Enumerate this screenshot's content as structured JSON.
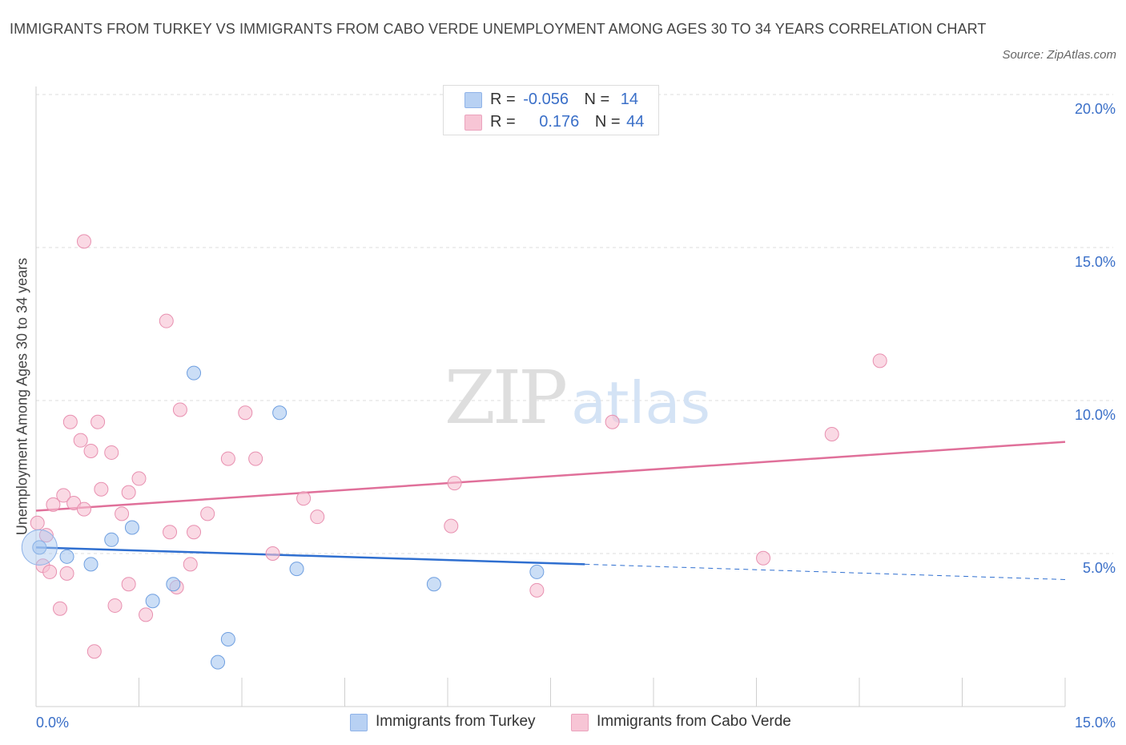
{
  "title": "IMMIGRANTS FROM TURKEY VS IMMIGRANTS FROM CABO VERDE UNEMPLOYMENT AMONG AGES 30 TO 34 YEARS CORRELATION CHART",
  "source": "Source: ZipAtlas.com",
  "watermark": {
    "zip": "ZIP",
    "atlas": "atlas"
  },
  "legend_top": {
    "rows": [
      {
        "r_label": "R =",
        "r_value": "-0.056",
        "n_label": "N =",
        "n_value": "14",
        "color": "#b8d1f3"
      },
      {
        "r_label": "R =",
        "r_value": "0.176",
        "n_label": "N =",
        "n_value": "44",
        "color": "#f7c5d5"
      }
    ]
  },
  "chart_data": {
    "type": "scatter",
    "ylabel": "Unemployment Among Ages 30 to 34 years",
    "xlim": [
      0,
      15
    ],
    "ylim": [
      0,
      20
    ],
    "x_tick_labels": [
      "0.0%",
      "15.0%"
    ],
    "y_tick_labels": [
      "5.0%",
      "10.0%",
      "15.0%",
      "20.0%"
    ],
    "y_ticks": [
      5,
      10,
      15,
      20
    ],
    "grid": "horizontal dashed",
    "legend_position": "top-center and bottom",
    "series": [
      {
        "name": "Immigrants from Turkey",
        "color": "#a9c8f0",
        "stroke": "#6f9fe0",
        "line_color": "#2f6fd0",
        "points": [
          [
            0.05,
            5.2
          ],
          [
            0.45,
            4.9
          ],
          [
            0.8,
            4.65
          ],
          [
            1.1,
            5.45
          ],
          [
            1.4,
            5.85
          ],
          [
            1.7,
            3.45
          ],
          [
            2.0,
            4.0
          ],
          [
            2.3,
            10.9
          ],
          [
            2.8,
            2.2
          ],
          [
            2.65,
            1.45
          ],
          [
            3.55,
            9.6
          ],
          [
            3.8,
            4.5
          ],
          [
            5.8,
            4.0
          ],
          [
            7.3,
            4.4
          ]
        ],
        "trend_solid": [
          [
            0.0,
            5.2
          ],
          [
            8.0,
            4.65
          ]
        ],
        "trend_dashed": [
          [
            8.0,
            4.65
          ],
          [
            15.0,
            4.15
          ]
        ]
      },
      {
        "name": "Immigrants from Cabo Verde",
        "color": "#f7c0d2",
        "stroke": "#e890b0",
        "line_color": "#e0709a",
        "points": [
          [
            0.02,
            6.0
          ],
          [
            0.1,
            4.6
          ],
          [
            0.15,
            5.6
          ],
          [
            0.2,
            4.4
          ],
          [
            0.25,
            6.6
          ],
          [
            0.35,
            3.2
          ],
          [
            0.4,
            6.9
          ],
          [
            0.45,
            4.35
          ],
          [
            0.5,
            9.3
          ],
          [
            0.55,
            6.65
          ],
          [
            0.65,
            8.7
          ],
          [
            0.7,
            15.2
          ],
          [
            0.7,
            6.45
          ],
          [
            0.8,
            8.35
          ],
          [
            0.85,
            1.8
          ],
          [
            0.9,
            9.3
          ],
          [
            0.95,
            7.1
          ],
          [
            1.1,
            8.3
          ],
          [
            1.15,
            3.3
          ],
          [
            1.25,
            6.3
          ],
          [
            1.35,
            4.0
          ],
          [
            1.35,
            7.0
          ],
          [
            1.5,
            7.45
          ],
          [
            1.6,
            3.0
          ],
          [
            1.9,
            12.6
          ],
          [
            1.95,
            5.7
          ],
          [
            2.05,
            3.9
          ],
          [
            2.1,
            9.7
          ],
          [
            2.25,
            4.65
          ],
          [
            2.3,
            5.7
          ],
          [
            2.5,
            6.3
          ],
          [
            2.8,
            8.1
          ],
          [
            3.05,
            9.6
          ],
          [
            3.2,
            8.1
          ],
          [
            3.45,
            5.0
          ],
          [
            3.9,
            6.8
          ],
          [
            4.1,
            6.2
          ],
          [
            6.1,
            7.3
          ],
          [
            6.05,
            5.9
          ],
          [
            7.3,
            3.8
          ],
          [
            8.4,
            9.3
          ],
          [
            10.6,
            4.85
          ],
          [
            11.6,
            8.9
          ],
          [
            12.3,
            11.3
          ]
        ],
        "trend_solid": [
          [
            0.0,
            6.4
          ],
          [
            15.0,
            8.65
          ]
        ]
      }
    ]
  },
  "bottom_legend": [
    {
      "label": "Immigrants from Turkey",
      "color": "#b8d1f3"
    },
    {
      "label": "Immigrants from Cabo Verde",
      "color": "#f7c5d5"
    }
  ]
}
